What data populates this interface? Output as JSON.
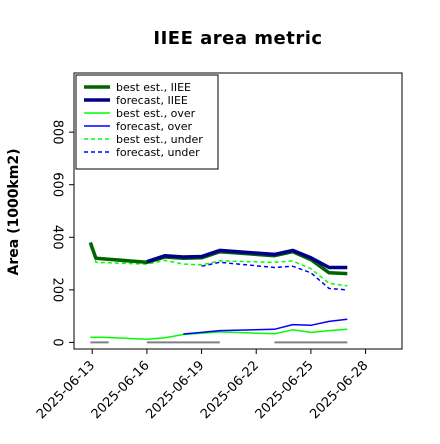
{
  "chart_data": {
    "type": "line",
    "title": "IIEE area metric",
    "xlabel": "",
    "ylabel": "Area (1000km2)",
    "xlim": [
      "2025-06-12",
      "2025-06-30"
    ],
    "ylim": [
      -25,
      1025
    ],
    "yticks": [
      0,
      200,
      400,
      600,
      800
    ],
    "xticks": [
      "2025-06-13",
      "2025-06-16",
      "2025-06-19",
      "2025-06-22",
      "2025-06-25",
      "2025-06-28"
    ],
    "highlight_xtick": "2025-06-19",
    "highlight_color": "#228b22",
    "legend_position": "upper left",
    "grid": false,
    "series": [
      {
        "name": "best est., IIEE",
        "color": "#006400",
        "style": "solid",
        "width": 3.5,
        "points": [
          [
            "2025-06-12.9",
            380
          ],
          [
            "2025-06-13.0",
            360
          ],
          [
            "2025-06-13.2",
            320
          ],
          [
            "2025-06-16.0",
            305
          ],
          [
            "2025-06-17.0",
            325
          ],
          [
            "2025-06-18.0",
            320
          ],
          [
            "2025-06-19.0",
            322
          ],
          [
            "2025-06-20.0",
            345
          ],
          [
            "2025-06-23.0",
            330
          ],
          [
            "2025-06-24.0",
            345
          ],
          [
            "2025-06-25.0",
            315
          ],
          [
            "2025-06-26.0",
            265
          ],
          [
            "2025-06-27.0",
            262
          ]
        ]
      },
      {
        "name": "forecast, IIEE",
        "color": "#00008b",
        "style": "solid",
        "width": 3.5,
        "points": [
          [
            "2025-06-16.0",
            307
          ],
          [
            "2025-06-17.0",
            330
          ],
          [
            "2025-06-18.0",
            325
          ],
          [
            "2025-06-19.0",
            327
          ],
          [
            "2025-06-20.0",
            350
          ],
          [
            "2025-06-23.0",
            335
          ],
          [
            "2025-06-24.0",
            350
          ],
          [
            "2025-06-25.0",
            322
          ],
          [
            "2025-06-26.0",
            285
          ],
          [
            "2025-06-27.0",
            285
          ]
        ]
      },
      {
        "name": "best est., over",
        "color": "#00ff00",
        "style": "solid",
        "width": 1.5,
        "points": [
          [
            "2025-06-12.9",
            20
          ],
          [
            "2025-06-13.5",
            20
          ],
          [
            "2025-06-16.0",
            12
          ],
          [
            "2025-06-17.0",
            18
          ],
          [
            "2025-06-18.0",
            30
          ],
          [
            "2025-06-19.0",
            35
          ],
          [
            "2025-06-20.0",
            40
          ],
          [
            "2025-06-23.0",
            33
          ],
          [
            "2025-06-24.0",
            48
          ],
          [
            "2025-06-25.0",
            38
          ],
          [
            "2025-06-26.0",
            45
          ],
          [
            "2025-06-27.0",
            50
          ]
        ]
      },
      {
        "name": "forecast, over",
        "color": "#0000ff",
        "style": "solid",
        "width": 1.5,
        "points": [
          [
            "2025-06-18.0",
            32
          ],
          [
            "2025-06-19.0",
            38
          ],
          [
            "2025-06-20.0",
            45
          ],
          [
            "2025-06-23.0",
            50
          ],
          [
            "2025-06-24.0",
            68
          ],
          [
            "2025-06-25.0",
            65
          ],
          [
            "2025-06-26.0",
            80
          ],
          [
            "2025-06-27.0",
            88
          ]
        ]
      },
      {
        "name": "best est., under",
        "color": "#00ff00",
        "style": "dashed",
        "width": 1.5,
        "points": [
          [
            "2025-06-12.9",
            362
          ],
          [
            "2025-06-13.0",
            350
          ],
          [
            "2025-06-13.2",
            305
          ],
          [
            "2025-06-16.0",
            298
          ],
          [
            "2025-06-17.0",
            312
          ],
          [
            "2025-06-18.0",
            298
          ],
          [
            "2025-06-19.0",
            295
          ],
          [
            "2025-06-20.0",
            310
          ],
          [
            "2025-06-23.0",
            305
          ],
          [
            "2025-06-24.0",
            310
          ],
          [
            "2025-06-25.0",
            280
          ],
          [
            "2025-06-26.0",
            225
          ],
          [
            "2025-06-27.0",
            215
          ]
        ]
      },
      {
        "name": "forecast, under",
        "color": "#0000ff",
        "style": "dashed",
        "width": 1.5,
        "points": [
          [
            "2025-06-19.0",
            290
          ],
          [
            "2025-06-20.0",
            305
          ],
          [
            "2025-06-23.0",
            285
          ],
          [
            "2025-06-24.0",
            290
          ],
          [
            "2025-06-25.0",
            265
          ],
          [
            "2025-06-26.0",
            205
          ],
          [
            "2025-06-27.0",
            200
          ]
        ]
      }
    ],
    "annotations": [
      {
        "kind": "gray-baseline",
        "color": "#808080",
        "y": 0,
        "from": "2025-06-12.9",
        "to": "2025-06-13.9"
      },
      {
        "kind": "gray-baseline",
        "color": "#808080",
        "y": 0,
        "from": "2025-06-16.0",
        "to": "2025-06-20.0"
      },
      {
        "kind": "gray-baseline",
        "color": "#808080",
        "y": 0,
        "from": "2025-06-23.0",
        "to": "2025-06-27.0"
      }
    ]
  }
}
